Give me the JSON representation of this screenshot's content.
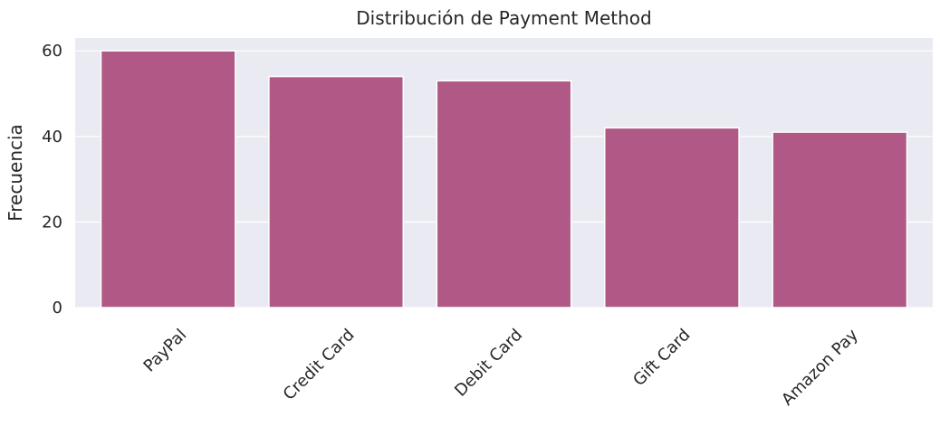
{
  "chart_data": {
    "type": "bar",
    "title": "Distribución de Payment Method",
    "xlabel": "",
    "ylabel": "Frecuencia",
    "categories": [
      "PayPal",
      "Credit Card",
      "Debit Card",
      "Gift Card",
      "Amazon Pay"
    ],
    "values": [
      60,
      54,
      53,
      42,
      41
    ],
    "ylim": [
      0,
      63
    ],
    "yticks": [
      0,
      20,
      40,
      60
    ],
    "grid": true,
    "legend": "none",
    "x_tick_rotation": 45,
    "colors": {
      "bar": "#b05886",
      "plot_background": "#eaeaf2",
      "grid": "#ffffff",
      "text": "#262626"
    }
  }
}
